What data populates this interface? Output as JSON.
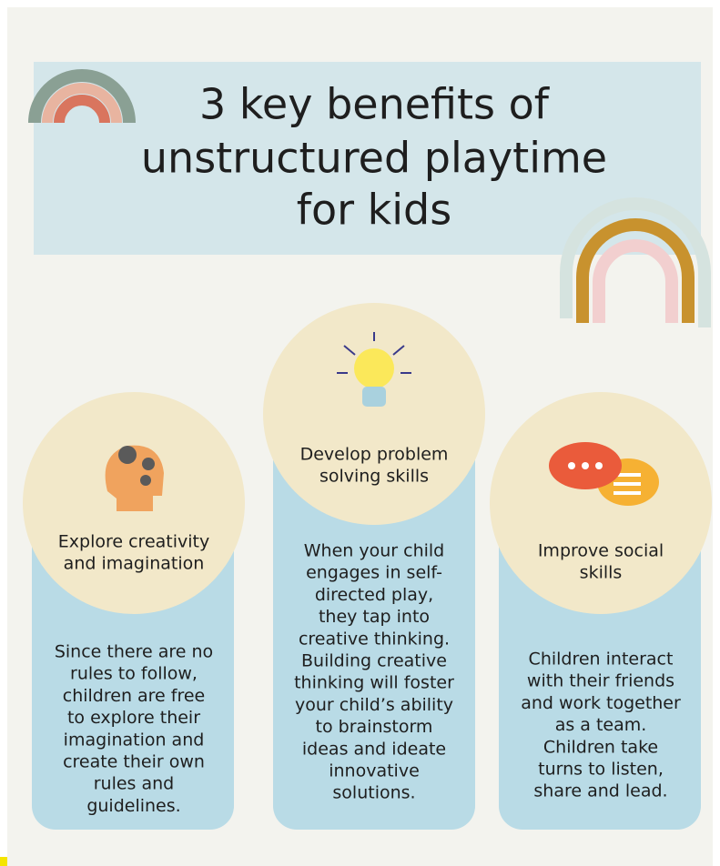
{
  "title_lines": [
    "3 key benefits of",
    "unstructured playtime",
    "for kids"
  ],
  "cards": [
    {
      "heading_lines": [
        "Explore creativity",
        "and imagination"
      ],
      "body_lines": [
        "Since there are no",
        "rules to follow,",
        "children are free",
        "to explore their",
        "imagination and",
        "create their own",
        "rules and",
        "guidelines."
      ]
    },
    {
      "heading_lines": [
        "Develop problem",
        "solving skills"
      ],
      "body_lines": [
        "When your child",
        "engages in self-",
        "directed play,",
        "they tap into",
        "creative thinking.",
        "Building creative",
        "thinking will foster",
        "your child’s ability",
        "to brainstorm",
        "ideas and ideate",
        "innovative",
        "solutions."
      ]
    },
    {
      "heading_lines": [
        "Improve social",
        "skills"
      ],
      "body_lines": [
        "Children interact",
        "with their friends",
        "and work together",
        "as a team.",
        "Children take",
        "turns to listen,",
        "share and lead."
      ]
    }
  ]
}
